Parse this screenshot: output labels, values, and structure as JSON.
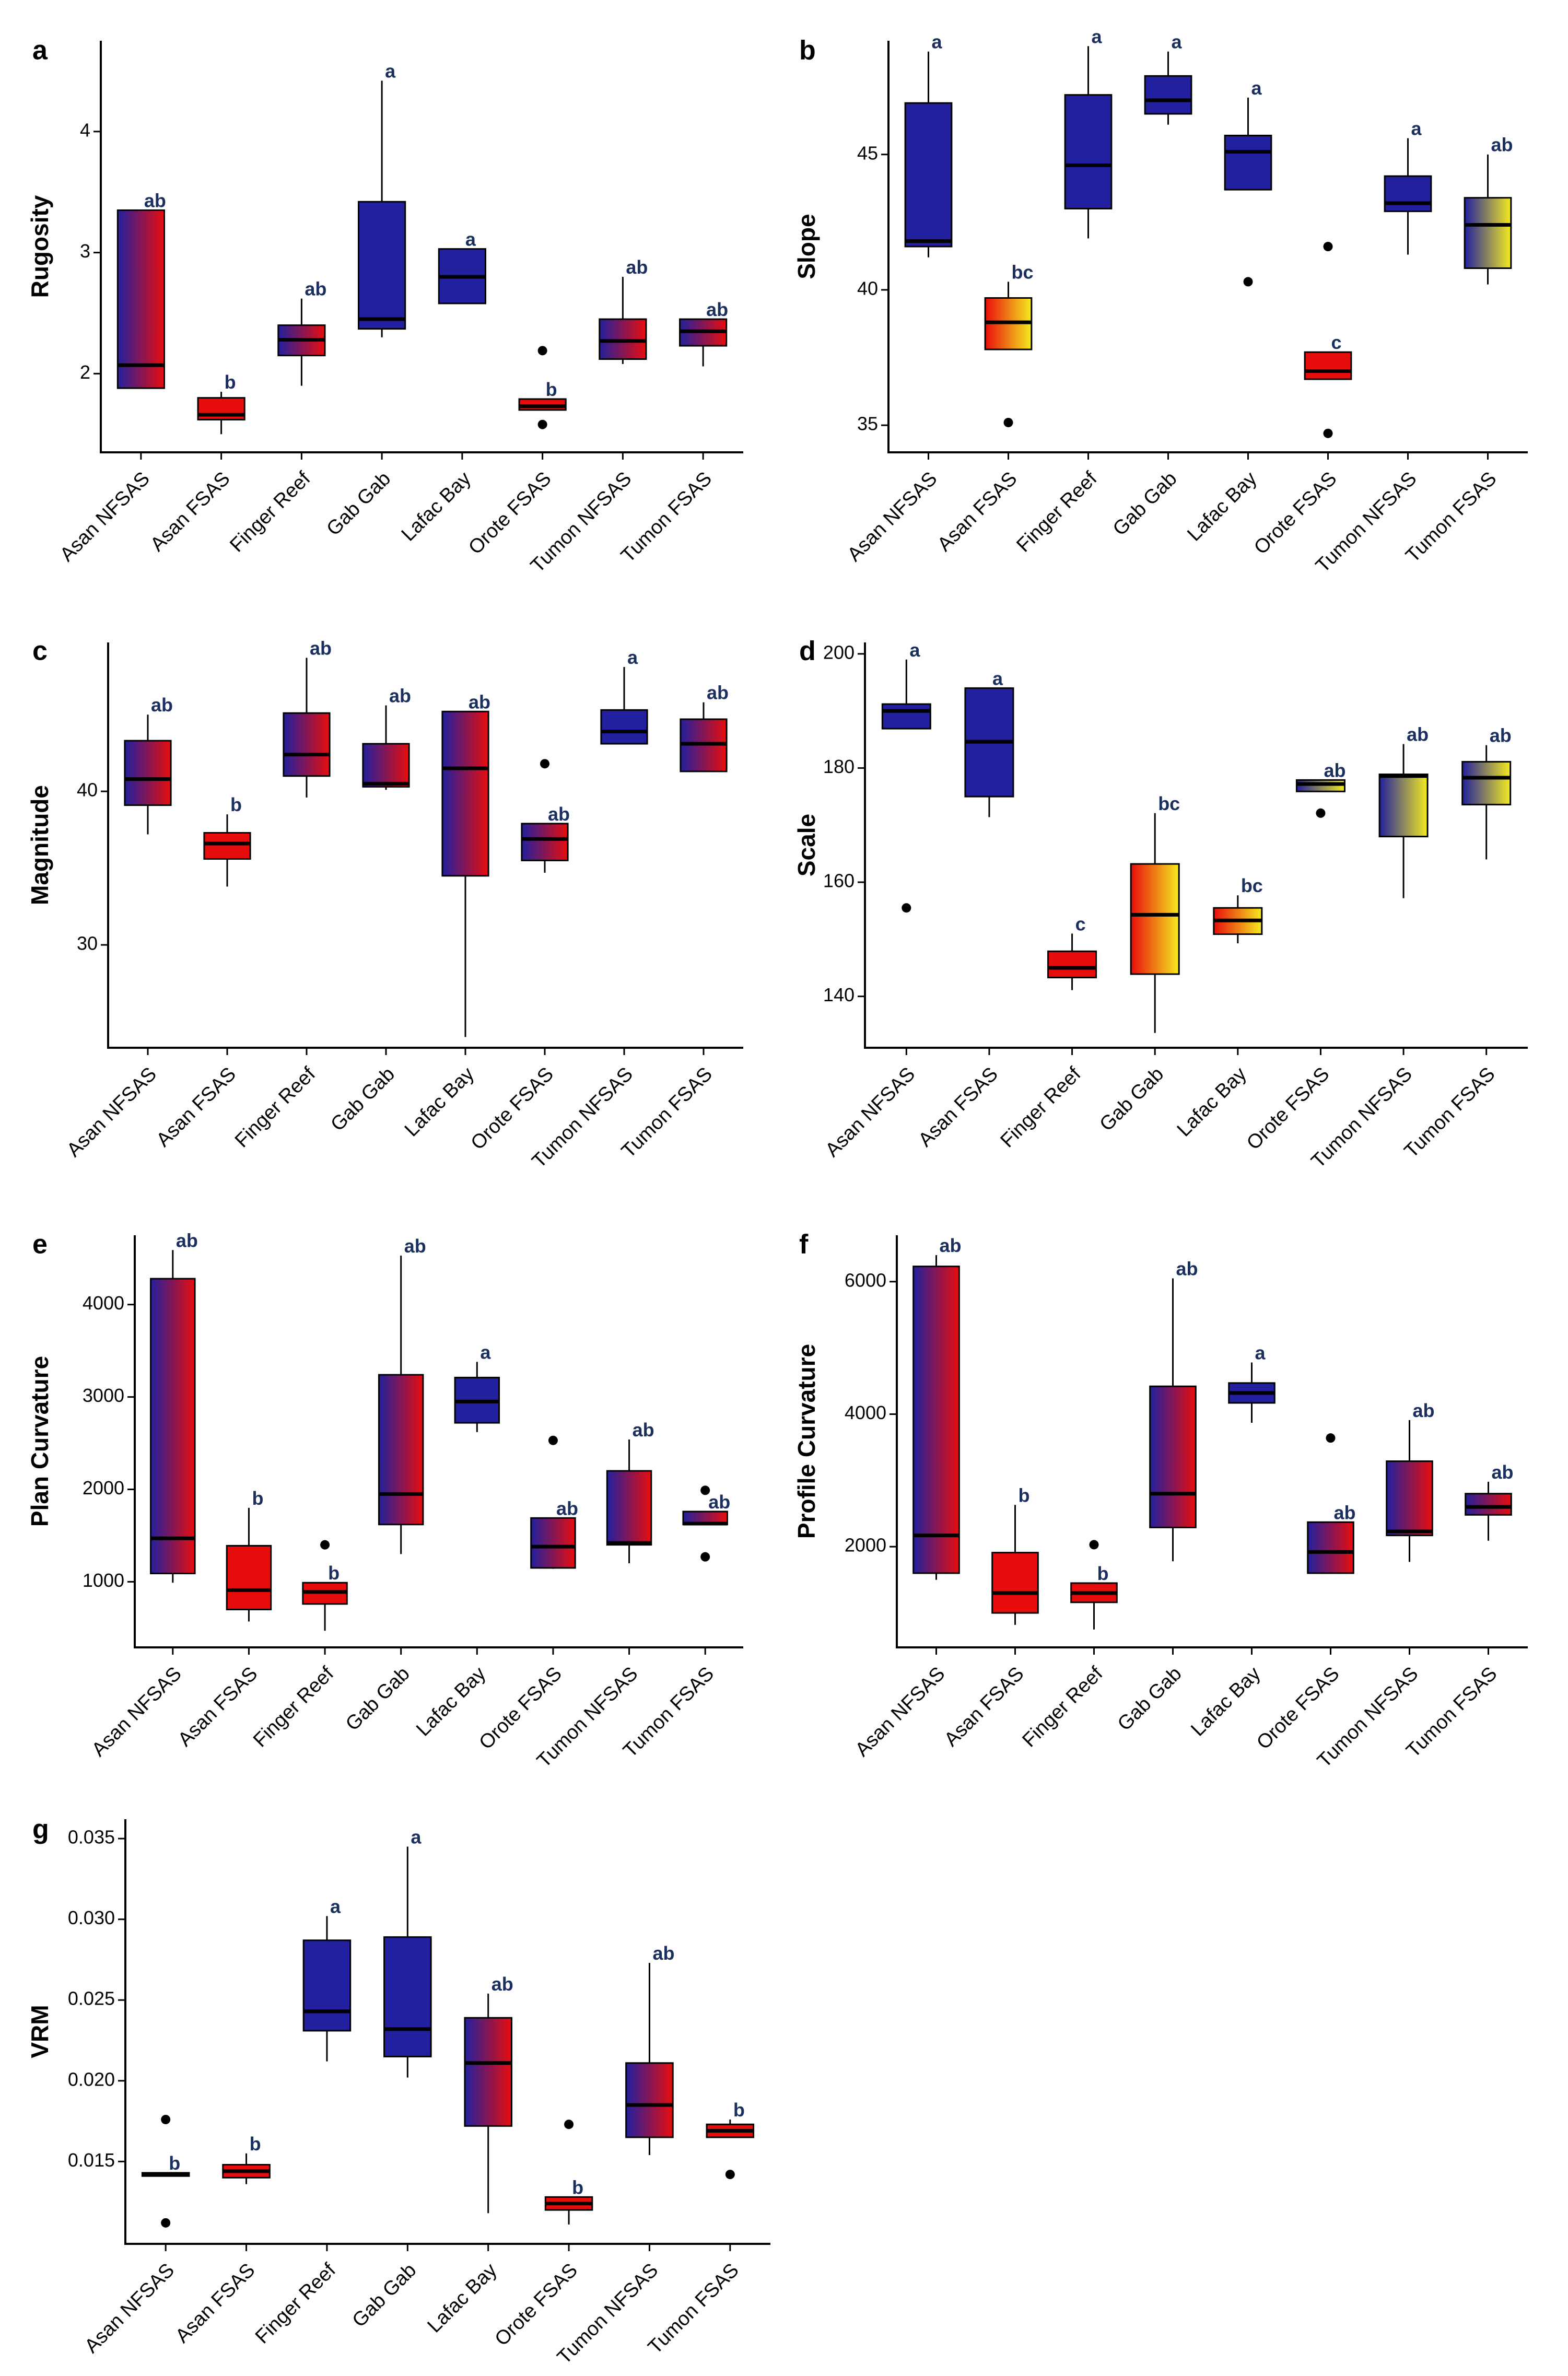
{
  "figure": {
    "categories": [
      "Asan NFSAS",
      "Asan FSAS",
      "Finger Reef",
      "Gab Gab",
      "Lafac Bay",
      "Orote FSAS",
      "Tumon NFSAS",
      "Tumon FSAS"
    ],
    "colors": {
      "blue": "#22209e",
      "red": "#e80d0d",
      "yellow": "#f5ec1f",
      "label": "#1b2f5e"
    }
  },
  "chart_data": [
    {
      "panel": "a",
      "type": "box",
      "ylabel": "Rugosity",
      "ylim": [
        1.35,
        4.75
      ],
      "yticks": [
        2,
        3,
        4
      ],
      "boxes": [
        {
          "min": 1.88,
          "q1": 1.88,
          "med": 2.07,
          "q3": 3.35,
          "max": 3.35,
          "out": [],
          "sig": "ab",
          "fill": "br"
        },
        {
          "min": 1.5,
          "q1": 1.62,
          "med": 1.66,
          "q3": 1.8,
          "max": 1.85,
          "out": [],
          "sig": "b",
          "fill": "r"
        },
        {
          "min": 1.9,
          "q1": 2.15,
          "med": 2.28,
          "q3": 2.4,
          "max": 2.62,
          "out": [],
          "sig": "ab",
          "fill": "br"
        },
        {
          "min": 2.3,
          "q1": 2.37,
          "med": 2.45,
          "q3": 3.42,
          "max": 4.42,
          "out": [],
          "sig": "a",
          "fill": "b"
        },
        {
          "min": 2.58,
          "q1": 2.58,
          "med": 2.8,
          "q3": 3.03,
          "max": 3.03,
          "out": [],
          "sig": "a",
          "fill": "b"
        },
        {
          "min": 1.7,
          "q1": 1.7,
          "med": 1.73,
          "q3": 1.79,
          "max": 1.79,
          "out": [
            2.19,
            1.58
          ],
          "sig": "b",
          "fill": "r"
        },
        {
          "min": 2.08,
          "q1": 2.12,
          "med": 2.27,
          "q3": 2.45,
          "max": 2.8,
          "out": [],
          "sig": "ab",
          "fill": "br"
        },
        {
          "min": 2.06,
          "q1": 2.23,
          "med": 2.35,
          "q3": 2.45,
          "max": 2.45,
          "out": [],
          "sig": "ab",
          "fill": "br"
        }
      ]
    },
    {
      "panel": "b",
      "type": "box",
      "ylabel": "Slope",
      "ylim": [
        34.0,
        49.2
      ],
      "yticks": [
        35,
        40,
        45
      ],
      "boxes": [
        {
          "min": 41.2,
          "q1": 41.6,
          "med": 41.8,
          "q3": 46.9,
          "max": 48.8,
          "out": [],
          "sig": "a",
          "fill": "b"
        },
        {
          "min": 37.8,
          "q1": 37.8,
          "med": 38.8,
          "q3": 39.7,
          "max": 40.3,
          "out": [
            35.1
          ],
          "sig": "bc",
          "fill": "ry"
        },
        {
          "min": 41.9,
          "q1": 43.0,
          "med": 44.6,
          "q3": 47.2,
          "max": 49.0,
          "out": [],
          "sig": "a",
          "fill": "b"
        },
        {
          "min": 46.1,
          "q1": 46.5,
          "med": 47.0,
          "q3": 47.9,
          "max": 48.8,
          "out": [],
          "sig": "a",
          "fill": "b"
        },
        {
          "min": 43.7,
          "q1": 43.7,
          "med": 45.1,
          "q3": 45.7,
          "max": 47.1,
          "out": [
            40.3
          ],
          "sig": "a",
          "fill": "b"
        },
        {
          "min": 36.7,
          "q1": 36.7,
          "med": 37.0,
          "q3": 37.7,
          "max": 37.7,
          "out": [
            41.6,
            34.7
          ],
          "sig": "c",
          "fill": "r"
        },
        {
          "min": 41.3,
          "q1": 42.9,
          "med": 43.2,
          "q3": 44.2,
          "max": 45.6,
          "out": [],
          "sig": "a",
          "fill": "b"
        },
        {
          "min": 40.2,
          "q1": 40.8,
          "med": 42.4,
          "q3": 43.4,
          "max": 45.0,
          "out": [],
          "sig": "ab",
          "fill": "by"
        }
      ]
    },
    {
      "panel": "c",
      "type": "box",
      "ylabel": "Magnitude",
      "ylim": [
        23.3,
        49.7
      ],
      "yticks": [
        30,
        40
      ],
      "boxes": [
        {
          "min": 37.2,
          "q1": 39.1,
          "med": 40.8,
          "q3": 43.3,
          "max": 45.0,
          "out": [],
          "sig": "ab",
          "fill": "br"
        },
        {
          "min": 33.8,
          "q1": 35.6,
          "med": 36.6,
          "q3": 37.3,
          "max": 38.5,
          "out": [],
          "sig": "b",
          "fill": "r"
        },
        {
          "min": 39.6,
          "q1": 41.0,
          "med": 42.4,
          "q3": 45.1,
          "max": 48.7,
          "out": [],
          "sig": "ab",
          "fill": "br"
        },
        {
          "min": 40.1,
          "q1": 40.3,
          "med": 40.5,
          "q3": 43.1,
          "max": 45.6,
          "out": [],
          "sig": "ab",
          "fill": "br"
        },
        {
          "min": 24.0,
          "q1": 34.5,
          "med": 41.5,
          "q3": 45.2,
          "max": 45.2,
          "out": [],
          "sig": "ab",
          "fill": "br"
        },
        {
          "min": 34.7,
          "q1": 35.5,
          "med": 36.9,
          "q3": 37.9,
          "max": 37.9,
          "out": [
            41.8
          ],
          "sig": "ab",
          "fill": "br"
        },
        {
          "min": 43.1,
          "q1": 43.1,
          "med": 43.9,
          "q3": 45.3,
          "max": 48.1,
          "out": [],
          "sig": "a",
          "fill": "b"
        },
        {
          "min": 41.3,
          "q1": 41.3,
          "med": 43.1,
          "q3": 44.7,
          "max": 45.8,
          "out": [],
          "sig": "ab",
          "fill": "br"
        }
      ]
    },
    {
      "panel": "d",
      "type": "box",
      "ylabel": "Scale",
      "ylim": [
        131,
        202
      ],
      "yticks": [
        140,
        160,
        180,
        200
      ],
      "boxes": [
        {
          "min": 186.9,
          "q1": 186.9,
          "med": 190.0,
          "q3": 191.2,
          "max": 199.0,
          "out": [
            155.5
          ],
          "sig": "a",
          "fill": "b"
        },
        {
          "min": 171.4,
          "q1": 175.0,
          "med": 184.6,
          "q3": 194.0,
          "max": 194.0,
          "out": [],
          "sig": "a",
          "fill": "b"
        },
        {
          "min": 141.1,
          "q1": 143.3,
          "med": 145.0,
          "q3": 147.9,
          "max": 151.0,
          "out": [],
          "sig": "c",
          "fill": "r"
        },
        {
          "min": 133.6,
          "q1": 143.9,
          "med": 154.3,
          "q3": 163.2,
          "max": 172.1,
          "out": [],
          "sig": "bc",
          "fill": "ry"
        },
        {
          "min": 149.3,
          "q1": 150.9,
          "med": 153.3,
          "q3": 155.5,
          "max": 157.7,
          "out": [],
          "sig": "bc",
          "fill": "ry"
        },
        {
          "min": 175.9,
          "q1": 175.9,
          "med": 177.2,
          "q3": 177.9,
          "max": 177.9,
          "out": [
            172.1
          ],
          "sig": "ab",
          "fill": "by"
        },
        {
          "min": 157.2,
          "q1": 168.0,
          "med": 178.6,
          "q3": 178.9,
          "max": 184.2,
          "out": [],
          "sig": "ab",
          "fill": "by"
        },
        {
          "min": 164.0,
          "q1": 173.6,
          "med": 178.3,
          "q3": 181.1,
          "max": 184.0,
          "out": [],
          "sig": "ab",
          "fill": "by"
        }
      ]
    },
    {
      "panel": "e",
      "type": "box",
      "ylabel": "Plan Curvature",
      "ylim": [
        290,
        4750
      ],
      "yticks": [
        1000,
        2000,
        3000,
        4000
      ],
      "boxes": [
        {
          "min": 990,
          "q1": 1090,
          "med": 1470,
          "q3": 4280,
          "max": 4590,
          "out": [],
          "sig": "ab",
          "fill": "br"
        },
        {
          "min": 570,
          "q1": 700,
          "med": 910,
          "q3": 1390,
          "max": 1800,
          "out": [],
          "sig": "b",
          "fill": "r"
        },
        {
          "min": 470,
          "q1": 760,
          "med": 890,
          "q3": 990,
          "max": 990,
          "out": [
            1400
          ],
          "sig": "b",
          "fill": "r"
        },
        {
          "min": 1300,
          "q1": 1620,
          "med": 1950,
          "q3": 3240,
          "max": 4530,
          "out": [],
          "sig": "ab",
          "fill": "br"
        },
        {
          "min": 2620,
          "q1": 2720,
          "med": 2950,
          "q3": 3210,
          "max": 3380,
          "out": [],
          "sig": "a",
          "fill": "b"
        },
        {
          "min": 1140,
          "q1": 1150,
          "med": 1380,
          "q3": 1690,
          "max": 1690,
          "out": [
            2530
          ],
          "sig": "ab",
          "fill": "br"
        },
        {
          "min": 1200,
          "q1": 1400,
          "med": 1420,
          "q3": 2200,
          "max": 2540,
          "out": [],
          "sig": "ab",
          "fill": "br"
        },
        {
          "min": 1620,
          "q1": 1620,
          "med": 1630,
          "q3": 1760,
          "max": 1760,
          "out": [
            1990,
            1270
          ],
          "sig": "ab",
          "fill": "br"
        }
      ]
    },
    {
      "panel": "f",
      "type": "box",
      "ylabel": "Profile Curvature",
      "ylim": [
        480,
        6700
      ],
      "yticks": [
        2000,
        4000,
        6000
      ],
      "boxes": [
        {
          "min": 1500,
          "q1": 1600,
          "med": 2170,
          "q3": 6230,
          "max": 6400,
          "out": [],
          "sig": "ab",
          "fill": "br"
        },
        {
          "min": 820,
          "q1": 1000,
          "med": 1300,
          "q3": 1910,
          "max": 2630,
          "out": [],
          "sig": "b",
          "fill": "r"
        },
        {
          "min": 750,
          "q1": 1160,
          "med": 1300,
          "q3": 1450,
          "max": 1450,
          "out": [
            2030
          ],
          "sig": "b",
          "fill": "r"
        },
        {
          "min": 1780,
          "q1": 2290,
          "med": 2800,
          "q3": 4420,
          "max": 6050,
          "out": [],
          "sig": "ab",
          "fill": "br"
        },
        {
          "min": 3870,
          "q1": 4170,
          "med": 4320,
          "q3": 4470,
          "max": 4780,
          "out": [],
          "sig": "a",
          "fill": "b"
        },
        {
          "min": 1600,
          "q1": 1600,
          "med": 1920,
          "q3": 2370,
          "max": 2370,
          "out": [
            3640
          ],
          "sig": "ab",
          "fill": "br"
        },
        {
          "min": 1770,
          "q1": 2170,
          "med": 2230,
          "q3": 3290,
          "max": 3910,
          "out": [],
          "sig": "ab",
          "fill": "br"
        },
        {
          "min": 2090,
          "q1": 2480,
          "med": 2600,
          "q3": 2800,
          "max": 2980,
          "out": [],
          "sig": "ab",
          "fill": "br"
        }
      ]
    },
    {
      "panel": "g",
      "type": "box",
      "ylabel": "VRM",
      "ylim": [
        0.0099,
        0.0362
      ],
      "yticks": [
        0.015,
        0.02,
        0.025,
        0.03,
        0.035
      ],
      "tickLabels": [
        "0.015",
        "0.020",
        "0.025",
        "0.030",
        "0.035"
      ],
      "boxes": [
        {
          "min": 0.0141,
          "q1": 0.0141,
          "med": 0.0142,
          "q3": 0.0143,
          "max": 0.0143,
          "out": [
            0.0176,
            0.0112
          ],
          "sig": "b",
          "fill": "r"
        },
        {
          "min": 0.0136,
          "q1": 0.014,
          "med": 0.0144,
          "q3": 0.0148,
          "max": 0.0155,
          "out": [],
          "sig": "b",
          "fill": "r"
        },
        {
          "min": 0.0212,
          "q1": 0.0231,
          "med": 0.0243,
          "q3": 0.0287,
          "max": 0.0302,
          "out": [],
          "sig": "a",
          "fill": "b"
        },
        {
          "min": 0.0202,
          "q1": 0.0215,
          "med": 0.0232,
          "q3": 0.0289,
          "max": 0.0345,
          "out": [],
          "sig": "a",
          "fill": "b"
        },
        {
          "min": 0.0118,
          "q1": 0.0172,
          "med": 0.0211,
          "q3": 0.0239,
          "max": 0.0254,
          "out": [],
          "sig": "ab",
          "fill": "br"
        },
        {
          "min": 0.0111,
          "q1": 0.012,
          "med": 0.0124,
          "q3": 0.0128,
          "max": 0.0128,
          "out": [
            0.0173
          ],
          "sig": "b",
          "fill": "r"
        },
        {
          "min": 0.0154,
          "q1": 0.0165,
          "med": 0.0185,
          "q3": 0.0211,
          "max": 0.0273,
          "out": [],
          "sig": "ab",
          "fill": "br"
        },
        {
          "min": 0.0165,
          "q1": 0.0165,
          "med": 0.0169,
          "q3": 0.0173,
          "max": 0.0176,
          "out": [
            0.0142
          ],
          "sig": "b",
          "fill": "r"
        }
      ]
    }
  ]
}
